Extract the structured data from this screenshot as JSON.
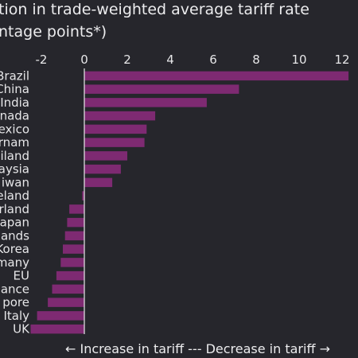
{
  "title": "tion in trade-weighted average tariff rate",
  "subtitle": "ntage points*)",
  "footer": "←  Increase in tariff --- Decrease in tariff  →",
  "colors": {
    "bar": "#7e2a72",
    "background": "#26262c",
    "axis": "#e8e8ea",
    "grid": "#3a3a40"
  },
  "chart_data": {
    "type": "bar",
    "orientation": "horizontal",
    "categories": [
      "Brazil",
      "China",
      "India",
      "nada",
      "exico",
      "rnam",
      "iland",
      "aysia",
      "iwan",
      "eland",
      "rland",
      "apan",
      "ands",
      "Korea",
      "many",
      "EU",
      "ance",
      "pore",
      "Italy",
      "UK"
    ],
    "values": [
      12.3,
      7.2,
      5.7,
      3.3,
      2.9,
      2.8,
      2.0,
      1.7,
      1.3,
      -0.1,
      -0.7,
      -0.8,
      -0.9,
      -1.0,
      -1.1,
      -1.3,
      -1.5,
      -1.7,
      -2.2,
      -2.5
    ],
    "xticks": [
      -2,
      0,
      2,
      4,
      6,
      8,
      10,
      12
    ],
    "xlim": [
      -2.5,
      12.5
    ],
    "xaxis_position": "top",
    "grid": false,
    "legend": "none"
  }
}
